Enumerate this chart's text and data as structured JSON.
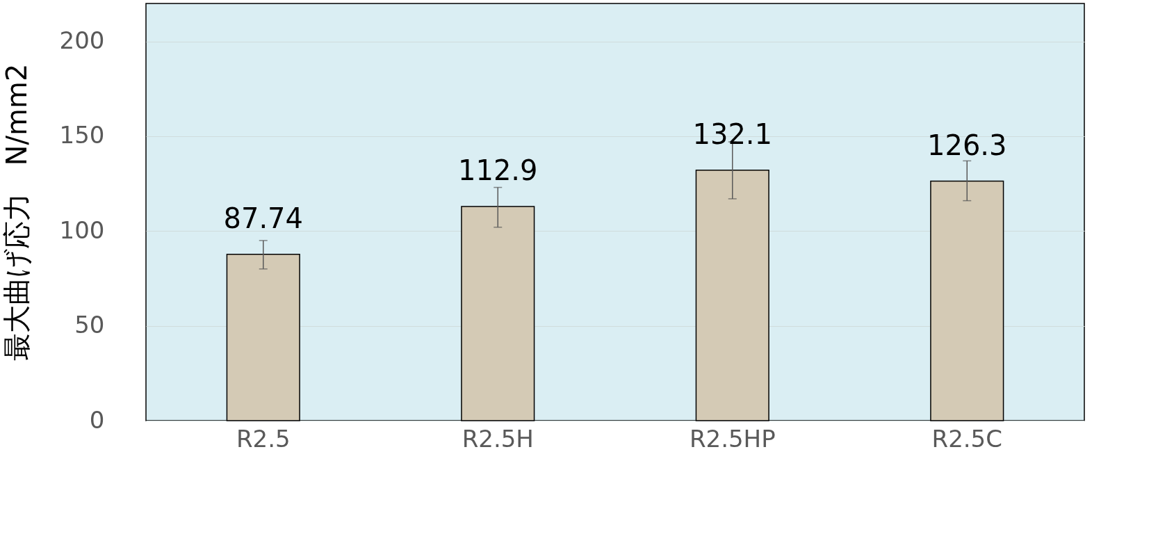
{
  "chart_data": {
    "type": "bar",
    "ylabel": "最大曲げ応力　N/mm2",
    "categories": [
      "R2.5",
      "R2.5H",
      "R2.5HP",
      "R2.5C"
    ],
    "values": [
      87.74,
      112.9,
      132.1,
      126.3
    ],
    "errors": [
      [
        80,
        95
      ],
      [
        102,
        123
      ],
      [
        117,
        147
      ],
      [
        116,
        137
      ]
    ],
    "color": "#d4cab5",
    "ylim": [
      0,
      220
    ],
    "yticks": [
      0,
      50,
      100,
      150,
      200
    ],
    "grid": "y",
    "data_labels": true
  }
}
